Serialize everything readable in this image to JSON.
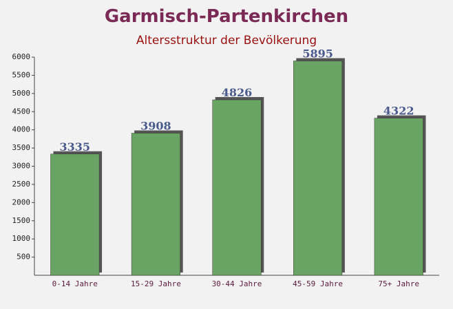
{
  "chart_data": {
    "type": "bar",
    "title": "Garmisch-Partenkirchen",
    "subtitle": "Altersstruktur der Bevölkerung",
    "categories": [
      "0-14 Jahre",
      "15-29 Jahre",
      "30-44 Jahre",
      "45-59 Jahre",
      "75+ Jahre"
    ],
    "values": [
      3335,
      3908,
      4826,
      5895,
      4322
    ],
    "color": "#6aa464",
    "ylim": [
      0,
      6000
    ],
    "yticks": [
      500,
      1000,
      1500,
      2000,
      2500,
      3000,
      3500,
      4000,
      4500,
      5000,
      5500,
      6000
    ]
  }
}
